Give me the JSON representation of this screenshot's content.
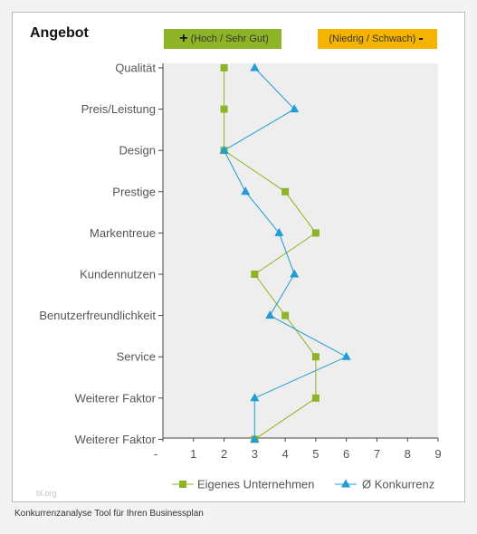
{
  "title": "Angebot",
  "badges": {
    "high": {
      "symbol": "+",
      "label": "(Hoch / Sehr Gut)",
      "color": "#8db424"
    },
    "low": {
      "symbol": "-",
      "label": "(Niedrig / Schwach)",
      "color": "#f5b400"
    }
  },
  "watermark": "bl.org",
  "caption": "Konkurrenzanalyse Tool für Ihren Businessplan",
  "chart_data": {
    "type": "line",
    "orientation": "horizontal-values",
    "categories": [
      "Qualität",
      "Preis/Leistung",
      "Design",
      "Prestige",
      "Markentreue",
      "Kundennutzen",
      "Benutzerfreundlichkeit",
      "Service",
      "Weiterer Faktor",
      "Weiterer Faktor"
    ],
    "x_ticks": [
      "-",
      "1",
      "2",
      "3",
      "4",
      "5",
      "6",
      "7",
      "8",
      "9"
    ],
    "xlim": [
      0,
      9
    ],
    "grid": false,
    "legend_position": "bottom",
    "series": [
      {
        "name": "Eigenes Unternehmen",
        "marker": "square",
        "color": "#8db424",
        "values": [
          2,
          2,
          2,
          4,
          5,
          3,
          4,
          5,
          5,
          3
        ]
      },
      {
        "name": "Ø Konkurrenz",
        "marker": "triangle",
        "color": "#1f9bd6",
        "values": [
          3,
          4.3,
          2,
          2.7,
          3.8,
          4.3,
          3.5,
          6,
          3,
          3
        ]
      }
    ]
  }
}
